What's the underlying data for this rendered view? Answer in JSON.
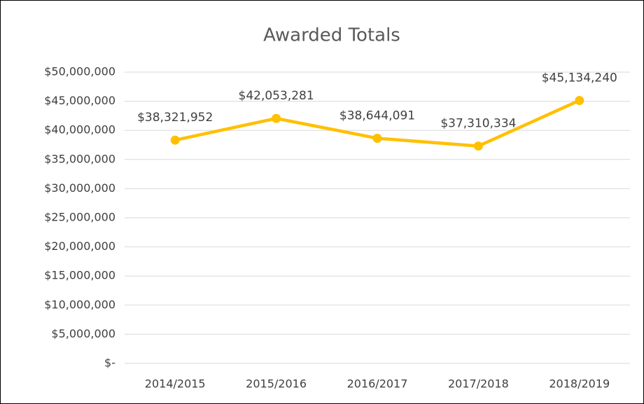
{
  "chart_data": {
    "type": "line",
    "title": "Awarded Totals",
    "categories": [
      "2014/2015",
      "2015/2016",
      "2016/2017",
      "2017/2018",
      "2018/2019"
    ],
    "series": [
      {
        "name": "Awarded Totals",
        "color": "#FFC000",
        "values": [
          38321952,
          42053281,
          38644091,
          37310334,
          45134240
        ],
        "value_labels": [
          "$38,321,952",
          "$42,053,281",
          "$38,644,091",
          "$37,310,334",
          "$45,134,240"
        ]
      }
    ],
    "ylim": [
      0,
      50000000
    ],
    "yticks": [
      {
        "value": 0,
        "label": "$-"
      },
      {
        "value": 5000000,
        "label": "$5,000,000"
      },
      {
        "value": 10000000,
        "label": "$10,000,000"
      },
      {
        "value": 15000000,
        "label": "$15,000,000"
      },
      {
        "value": 20000000,
        "label": "$20,000,000"
      },
      {
        "value": 25000000,
        "label": "$25,000,000"
      },
      {
        "value": 30000000,
        "label": "$30,000,000"
      },
      {
        "value": 35000000,
        "label": "$35,000,000"
      },
      {
        "value": 40000000,
        "label": "$40,000,000"
      },
      {
        "value": 45000000,
        "label": "$45,000,000"
      },
      {
        "value": 50000000,
        "label": "$50,000,000"
      }
    ],
    "grid": true
  }
}
